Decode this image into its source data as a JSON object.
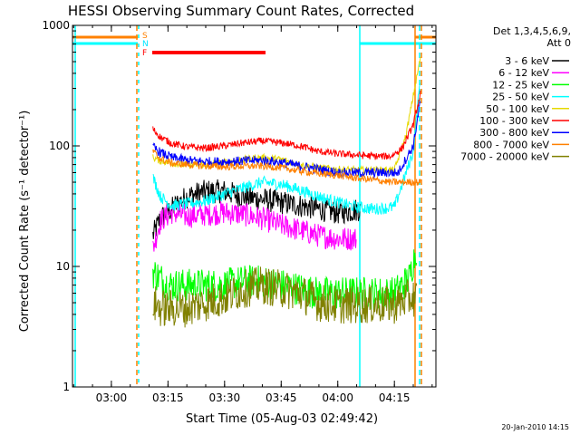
{
  "chart_data": {
    "type": "line",
    "title": "HESSI Observing Summary Count Rates, Corrected",
    "xlabel": "Start Time (05-Aug-03 02:49:42)",
    "ylabel": "Corrected Count Rate (s⁻¹ detector⁻¹)",
    "y_scale": "log",
    "ylim": [
      1,
      1000
    ],
    "xlim": [
      "02:49:42",
      "04:26:00"
    ],
    "x_ticks": [
      "03:00",
      "03:15",
      "03:30",
      "03:45",
      "04:00",
      "04:15"
    ],
    "y_ticks": [
      "1",
      "10",
      "100",
      "1000"
    ],
    "legend_position": "right",
    "legend_header": [
      "Det 1,3,4,5,6,9,",
      "Att 0"
    ],
    "footer": "20-Jan-2010 14:15",
    "flag_labels": [
      "S",
      "N",
      "F"
    ],
    "series": [
      {
        "name": "3 - 6 keV",
        "color": "#000000",
        "x": [
          "03:11",
          "03:13",
          "03:17",
          "03:20",
          "03:25",
          "03:30",
          "03:35",
          "03:40",
          "03:45",
          "03:50",
          "03:55",
          "04:00",
          "04:04",
          "04:06"
        ],
        "y": [
          18,
          25,
          32,
          38,
          42,
          42,
          38,
          36,
          34,
          32,
          30,
          28,
          29,
          30
        ]
      },
      {
        "name": "6 - 12 keV",
        "color": "#ff00ff",
        "x": [
          "03:11",
          "03:13",
          "03:16",
          "03:20",
          "03:25",
          "03:30",
          "03:35",
          "03:40",
          "03:45",
          "03:50",
          "03:55",
          "04:00",
          "04:04",
          "04:05"
        ],
        "y": [
          14,
          24,
          28,
          26,
          27,
          28,
          27,
          25,
          22,
          20,
          18,
          17,
          17,
          17
        ]
      },
      {
        "name": "12 - 25 keV",
        "color": "#00ff00",
        "x": [
          "03:11",
          "03:13",
          "03:15",
          "03:20",
          "03:25",
          "03:30",
          "03:35",
          "03:40",
          "03:45",
          "03:50",
          "03:55",
          "04:00",
          "04:05",
          "04:10",
          "04:15",
          "04:19",
          "04:21"
        ],
        "y": [
          9,
          8,
          7,
          7,
          7,
          7,
          7.5,
          7.5,
          7,
          6.5,
          6,
          6,
          6,
          6,
          6,
          8,
          15
        ]
      },
      {
        "name": "25 - 50 keV",
        "color": "#00ffff",
        "x": [
          "03:11",
          "03:13",
          "03:16",
          "03:20",
          "03:25",
          "03:30",
          "03:35",
          "03:40",
          "03:45",
          "03:50",
          "03:55",
          "04:00",
          "04:05",
          "04:10",
          "04:15",
          "04:20",
          "04:22"
        ],
        "y": [
          55,
          38,
          32,
          33,
          35,
          40,
          45,
          50,
          48,
          43,
          38,
          34,
          31,
          30,
          31,
          90,
          400
        ]
      },
      {
        "name": "50 - 100 keV",
        "color": "#e6d800",
        "x": [
          "03:11",
          "03:13",
          "03:16",
          "03:20",
          "03:25",
          "03:30",
          "03:35",
          "03:40",
          "03:45",
          "03:50",
          "03:55",
          "04:00",
          "04:05",
          "04:10",
          "04:15",
          "04:18",
          "04:22"
        ],
        "y": [
          80,
          75,
          72,
          70,
          70,
          73,
          77,
          80,
          77,
          70,
          66,
          64,
          63,
          63,
          63,
          120,
          560
        ]
      },
      {
        "name": "100 - 300 keV",
        "color": "#ff0000",
        "x": [
          "03:11",
          "03:13",
          "03:16",
          "03:20",
          "03:25",
          "03:30",
          "03:35",
          "03:40",
          "03:45",
          "03:50",
          "03:55",
          "04:00",
          "04:05",
          "04:10",
          "04:14",
          "04:17",
          "04:20",
          "04:22"
        ],
        "y": [
          138,
          118,
          105,
          98,
          96,
          100,
          106,
          110,
          106,
          100,
          90,
          86,
          84,
          82,
          82,
          95,
          150,
          280
        ]
      },
      {
        "name": "300 - 800 keV",
        "color": "#0000ff",
        "x": [
          "03:11",
          "03:13",
          "03:16",
          "03:20",
          "03:25",
          "03:30",
          "03:35",
          "03:40",
          "03:45",
          "03:50",
          "03:55",
          "04:00",
          "04:05",
          "04:08",
          "04:12",
          "04:16",
          "04:20",
          "04:22"
        ],
        "y": [
          98,
          88,
          80,
          76,
          74,
          74,
          75,
          76,
          73,
          68,
          64,
          60,
          60,
          60,
          60,
          60,
          100,
          250
        ]
      },
      {
        "name": "800 - 7000 keV",
        "color": "#ff8000",
        "x": [
          "03:11",
          "03:13",
          "03:16",
          "03:20",
          "03:25",
          "03:30",
          "03:35",
          "03:40",
          "03:45",
          "03:50",
          "03:55",
          "04:00",
          "04:05",
          "04:10",
          "04:14",
          "04:20",
          "04:22"
        ],
        "y": [
          90,
          78,
          72,
          70,
          68,
          67,
          68,
          68,
          66,
          62,
          59,
          57,
          54,
          52,
          50,
          50,
          50
        ]
      },
      {
        "name": "7000 - 20000 keV",
        "color": "#808000",
        "x": [
          "03:11",
          "03:13",
          "03:15",
          "03:20",
          "03:25",
          "03:30",
          "03:35",
          "03:40",
          "03:45",
          "03:50",
          "03:55",
          "04:00",
          "04:05",
          "04:10",
          "04:15",
          "04:19",
          "04:21"
        ],
        "y": [
          5,
          4.5,
          4.5,
          4.5,
          5,
          5.5,
          6.5,
          7,
          6.5,
          6,
          5,
          4.8,
          4.8,
          4.8,
          4.8,
          5.5,
          5.5
        ]
      }
    ]
  }
}
